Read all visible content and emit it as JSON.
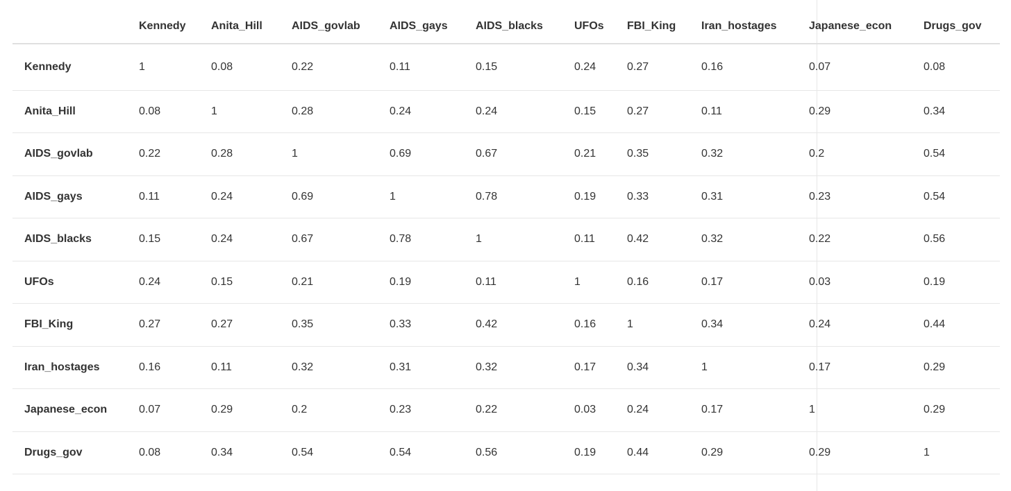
{
  "colors": {
    "background": "#ffffff",
    "text": "#333333",
    "header_text": "#333333",
    "row_border": "#e7e7e7",
    "header_border": "#dfdfdf",
    "column_divider": "#e7e7e7"
  },
  "table": {
    "corner_label": ""
  },
  "chart_data": {
    "type": "table",
    "description_visible": false,
    "columns": [
      "Kennedy",
      "Anita_Hill",
      "AIDS_govlab",
      "AIDS_gays",
      "AIDS_blacks",
      "UFOs",
      "FBI_King",
      "Iran_hostages",
      "Japanese_econ",
      "Drugs_gov"
    ],
    "rows": [
      {
        "label": "Kennedy",
        "values": [
          1,
          0.08,
          0.22,
          0.11,
          0.15,
          0.24,
          0.27,
          0.16,
          0.07,
          0.08
        ]
      },
      {
        "label": "Anita_Hill",
        "values": [
          0.08,
          1,
          0.28,
          0.24,
          0.24,
          0.15,
          0.27,
          0.11,
          0.29,
          0.34
        ]
      },
      {
        "label": "AIDS_govlab",
        "values": [
          0.22,
          0.28,
          1,
          0.69,
          0.67,
          0.21,
          0.35,
          0.32,
          0.2,
          0.54
        ]
      },
      {
        "label": "AIDS_gays",
        "values": [
          0.11,
          0.24,
          0.69,
          1,
          0.78,
          0.19,
          0.33,
          0.31,
          0.23,
          0.54
        ]
      },
      {
        "label": "AIDS_blacks",
        "values": [
          0.15,
          0.24,
          0.67,
          0.78,
          1,
          0.11,
          0.42,
          0.32,
          0.22,
          0.56
        ]
      },
      {
        "label": "UFOs",
        "values": [
          0.24,
          0.15,
          0.21,
          0.19,
          0.11,
          1,
          0.16,
          0.17,
          0.03,
          0.19
        ]
      },
      {
        "label": "FBI_King",
        "values": [
          0.27,
          0.27,
          0.35,
          0.33,
          0.42,
          0.16,
          1,
          0.34,
          0.24,
          0.44
        ]
      },
      {
        "label": "Iran_hostages",
        "values": [
          0.16,
          0.11,
          0.32,
          0.31,
          0.32,
          0.17,
          0.34,
          1,
          0.17,
          0.29
        ]
      },
      {
        "label": "Japanese_econ",
        "values": [
          0.07,
          0.29,
          0.2,
          0.23,
          0.22,
          0.03,
          0.24,
          0.17,
          1,
          0.29
        ]
      },
      {
        "label": "Drugs_gov",
        "values": [
          0.08,
          0.34,
          0.54,
          0.54,
          0.56,
          0.19,
          0.44,
          0.29,
          0.29,
          1
        ]
      }
    ]
  }
}
